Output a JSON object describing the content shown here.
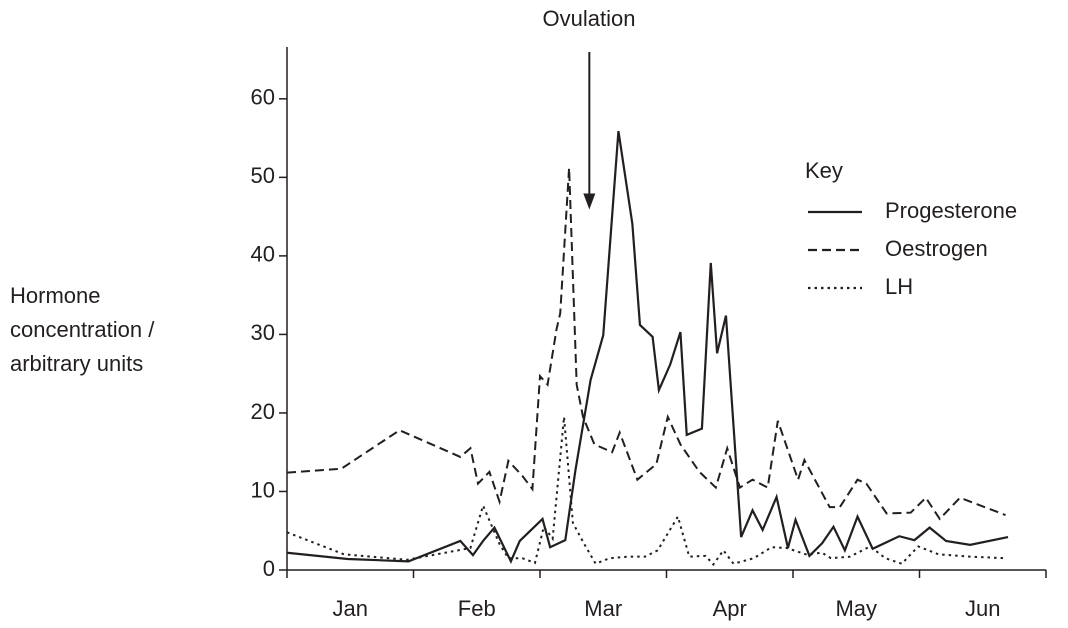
{
  "chart_data": {
    "type": "line",
    "annotation": {
      "text": "Ovulation",
      "x": 2.39,
      "y": 45.9
    },
    "y_label": [
      "Hormone",
      "concentration /",
      "arbitrary units"
    ],
    "legend_title": "Key",
    "categories": [
      "Jan",
      "Feb",
      "Mar",
      "Apr",
      "May",
      "Jun"
    ],
    "xlim": [
      0,
      6
    ],
    "xticks": [
      0,
      1,
      2,
      3,
      4,
      5,
      6
    ],
    "ylim": [
      0,
      66.6
    ],
    "yticks": [
      0,
      10,
      20,
      30,
      40,
      50,
      60
    ],
    "legend": "upper right",
    "series": [
      {
        "name": "Progesterone",
        "color": "#231f20",
        "dash": "solid",
        "x": [
          0,
          0.48,
          0.96,
          1.37,
          1.47,
          1.55,
          1.64,
          1.77,
          1.84,
          2.02,
          2.08,
          2.2,
          2.28,
          2.4,
          2.5,
          2.62,
          2.73,
          2.79,
          2.89,
          2.94,
          3.03,
          3.11,
          3.16,
          3.28,
          3.35,
          3.4,
          3.47,
          3.59,
          3.68,
          3.76,
          3.87,
          3.96,
          4.02,
          4.13,
          4.23,
          4.32,
          4.41,
          4.51,
          4.63,
          4.84,
          4.96,
          5.08,
          5.21,
          5.4,
          5.7
        ],
        "values": [
          2.2,
          1.4,
          1.1,
          3.7,
          1.9,
          3.7,
          5.4,
          1.1,
          3.7,
          6.5,
          2.9,
          3.8,
          12.7,
          24.2,
          29.9,
          55.9,
          44.1,
          31.2,
          29.7,
          22.9,
          26.2,
          30.3,
          17.2,
          18.0,
          39.1,
          27.6,
          32.4,
          4.2,
          7.6,
          5.1,
          9.3,
          2.8,
          6.4,
          1.8,
          3.4,
          5.5,
          2.5,
          6.8,
          2.7,
          4.3,
          3.8,
          5.4,
          3.7,
          3.2,
          4.2
        ]
      },
      {
        "name": "Oestrogen",
        "color": "#231f20",
        "dash": "dashed",
        "x": [
          0,
          0.43,
          0.89,
          1.37,
          1.45,
          1.51,
          1.6,
          1.68,
          1.75,
          1.86,
          1.94,
          2.0,
          2.06,
          2.13,
          2.16,
          2.23,
          2.29,
          2.34,
          2.43,
          2.57,
          2.63,
          2.77,
          2.92,
          3.01,
          3.11,
          3.26,
          3.39,
          3.48,
          3.58,
          3.68,
          3.8,
          3.88,
          4.04,
          4.09,
          4.29,
          4.37,
          4.51,
          4.58,
          4.74,
          4.93,
          5.05,
          5.16,
          5.32,
          5.68
        ],
        "values": [
          12.4,
          12.9,
          17.8,
          14.4,
          15.5,
          11.0,
          12.5,
          8.7,
          13.9,
          12.0,
          10.3,
          24.7,
          23.6,
          30.6,
          32.7,
          51.2,
          23.6,
          19.5,
          16,
          15,
          17.5,
          11.5,
          13.5,
          19.5,
          16,
          12.5,
          10.5,
          15.5,
          10.5,
          11.5,
          10.5,
          19,
          11.5,
          14,
          8,
          8,
          11.5,
          11,
          7.2,
          7.3,
          9.2,
          6.5,
          9.2,
          7
        ]
      },
      {
        "name": "LH",
        "color": "#231f20",
        "dash": "dotted",
        "x": [
          0,
          0.45,
          0.95,
          1.45,
          1.55,
          1.68,
          1.75,
          1.86,
          1.96,
          2.03,
          2.1,
          2.19,
          2.26,
          2.35,
          2.44,
          2.55,
          2.7,
          2.83,
          2.93,
          3.09,
          3.18,
          3.31,
          3.37,
          3.45,
          3.53,
          3.69,
          3.83,
          3.95,
          4.1,
          4.23,
          4.3,
          4.45,
          4.61,
          4.73,
          4.86,
          4.99,
          5.15,
          5.4,
          5.68
        ],
        "values": [
          4.8,
          2.0,
          1.3,
          2.8,
          8.2,
          3.3,
          1.5,
          1.5,
          0.9,
          5.5,
          4.0,
          19.5,
          6,
          3.3,
          0.8,
          1.5,
          1.7,
          1.7,
          2.5,
          6.8,
          1.7,
          1.8,
          0.7,
          2.5,
          0.8,
          1.5,
          2.9,
          2.8,
          2.0,
          2.2,
          1.5,
          1.7,
          3.0,
          1.5,
          0.8,
          3.0,
          2.0,
          1.7,
          1.5
        ]
      }
    ]
  }
}
